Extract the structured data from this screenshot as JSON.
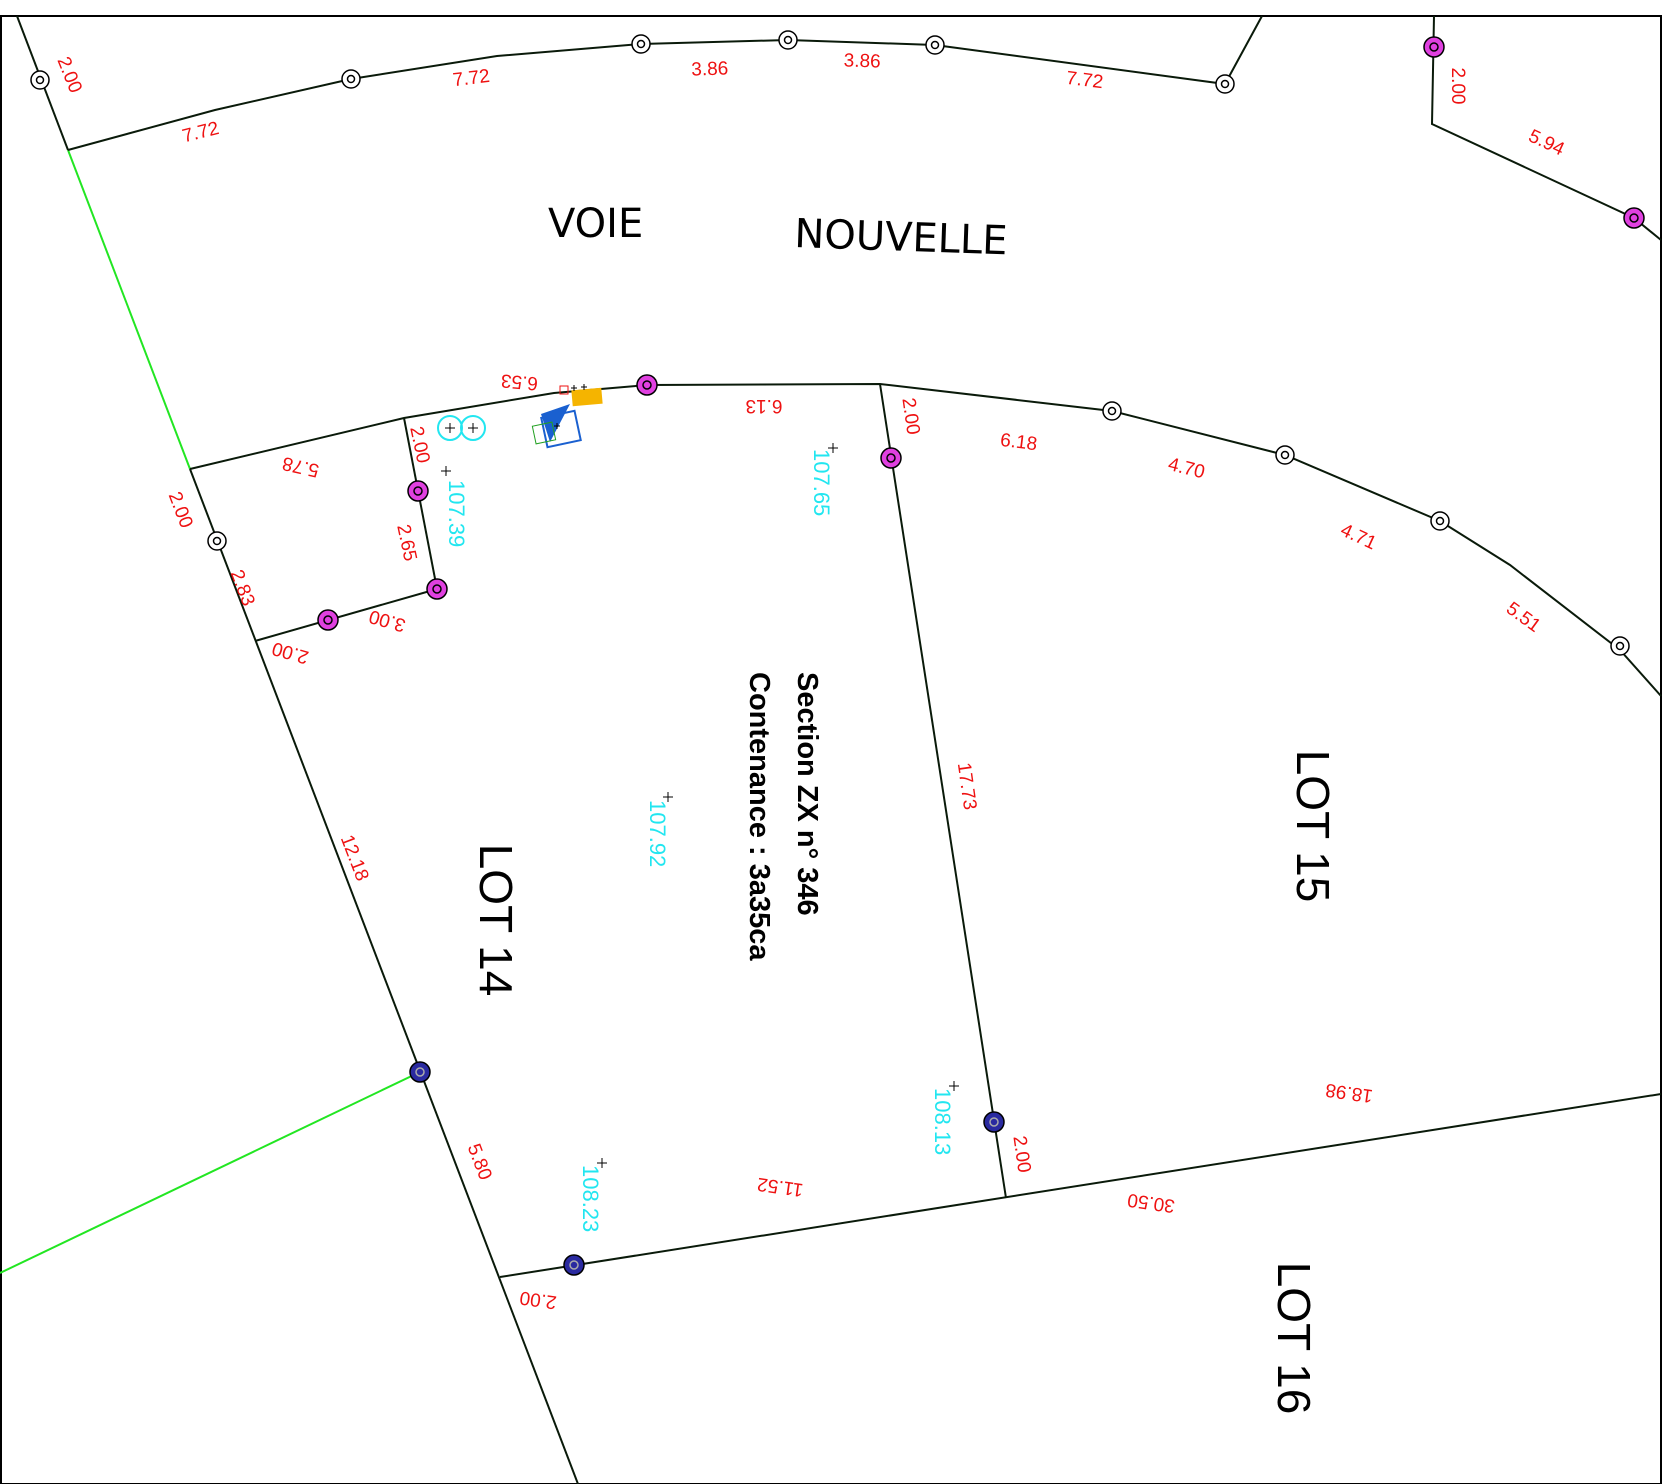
{
  "street": {
    "word1": "VOIE",
    "word2": "NOUVELLE"
  },
  "lots": {
    "lot14": "LOT 14",
    "lot15": "LOT 15",
    "lot16": "LOT 16"
  },
  "parcel": {
    "section": "Section  ZX   n° 346",
    "area": "Contenance : 3a35ca"
  },
  "dimensions": {
    "d_2_00_top_left": "2.00",
    "d_7_72_a": "7.72",
    "d_7_72_b": "7.72",
    "d_3_86_a": "3.86",
    "d_3_86_b": "3.86",
    "d_7_72_c": "7.72",
    "d_2_00_top_right": "2.00",
    "d_5_94": "5.94",
    "d_6_53": "6.53",
    "d_6_13": "6.13",
    "d_2_00_lot15": "2.00",
    "d_6_18": "6.18",
    "d_4_70": "4.70",
    "d_4_71": "4.71",
    "d_5_51": "5.51",
    "d_5_78": "5.78",
    "d_2_00_inner": "2.00",
    "d_2_00_left": "2.00",
    "d_2_65": "2.65",
    "d_2_83": "2.83",
    "d_3_00": "3.00",
    "d_2_00_bottom_left": "2.00",
    "d_17_73": "17.73",
    "d_12_18": "12.18",
    "d_18_98": "18.98",
    "d_2_00_right": "2.00",
    "d_5_80": "5.80",
    "d_11_52": "11.52",
    "d_30_50": "30.50",
    "d_2_00_bottom": "2.00"
  },
  "altitudes": {
    "a1": "107.39",
    "a2": "107.65",
    "a3": "107.92",
    "a4": "108.13",
    "a5": "108.23"
  },
  "colors": {
    "boundary": "#0a1a0a",
    "green_line": "#22e622",
    "dimension_text": "#ee1111",
    "altitude_text": "#22e6f0",
    "magenta_marker": "#e040e0",
    "blue_marker": "#2a2aa0",
    "orange_symbol": "#f5b400",
    "blue_symbol": "#1a60d0"
  }
}
